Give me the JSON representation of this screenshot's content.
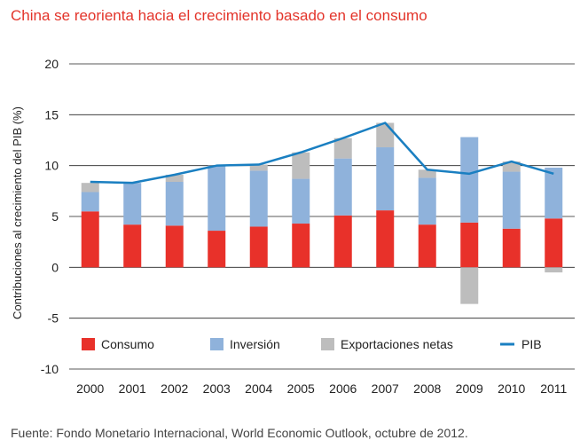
{
  "title": "China se reorienta hacia el crecimiento basado en el consumo",
  "source": "Fuente: Fondo Monetario Internacional, World Economic Outlook, octubre de 2012.",
  "colors": {
    "consumo": "#e8312a",
    "inversion": "#8fb2db",
    "exportaciones": "#bdbdbd",
    "pib": "#1a7fc1",
    "title": "#e3342a"
  },
  "chart_data": {
    "type": "bar",
    "stacked": true,
    "title": "China se reorienta hacia el crecimiento basado en el consumo",
    "xlabel": "",
    "ylabel": "Contribuciones al crecimiento del PIB (%)",
    "ylim": [
      -10,
      20
    ],
    "yticks": [
      -10,
      -5,
      0,
      5,
      10,
      15,
      20
    ],
    "categories": [
      "2000",
      "2001",
      "2002",
      "2003",
      "2004",
      "2005",
      "2006",
      "2007",
      "2008",
      "2009",
      "2010",
      "2011"
    ],
    "series": [
      {
        "name": "Consumo",
        "type": "bar",
        "values": [
          5.5,
          4.2,
          4.1,
          3.6,
          4.0,
          4.3,
          5.1,
          5.6,
          4.2,
          4.4,
          3.8,
          4.8
        ]
      },
      {
        "name": "Inversión",
        "type": "bar",
        "values": [
          1.9,
          4.1,
          4.3,
          6.4,
          5.5,
          4.4,
          5.6,
          6.2,
          4.6,
          8.4,
          5.6,
          5.0
        ]
      },
      {
        "name": "Exportaciones netas",
        "type": "bar",
        "values": [
          0.9,
          0.0,
          0.7,
          0.0,
          0.6,
          2.6,
          2.0,
          2.4,
          0.8,
          -3.6,
          1.0,
          -0.5
        ]
      },
      {
        "name": "PIB",
        "type": "line",
        "values": [
          8.4,
          8.3,
          9.1,
          10.0,
          10.1,
          11.3,
          12.7,
          14.2,
          9.6,
          9.2,
          10.4,
          9.2
        ]
      }
    ],
    "legend_position": "bottom-inside",
    "grid": true
  }
}
